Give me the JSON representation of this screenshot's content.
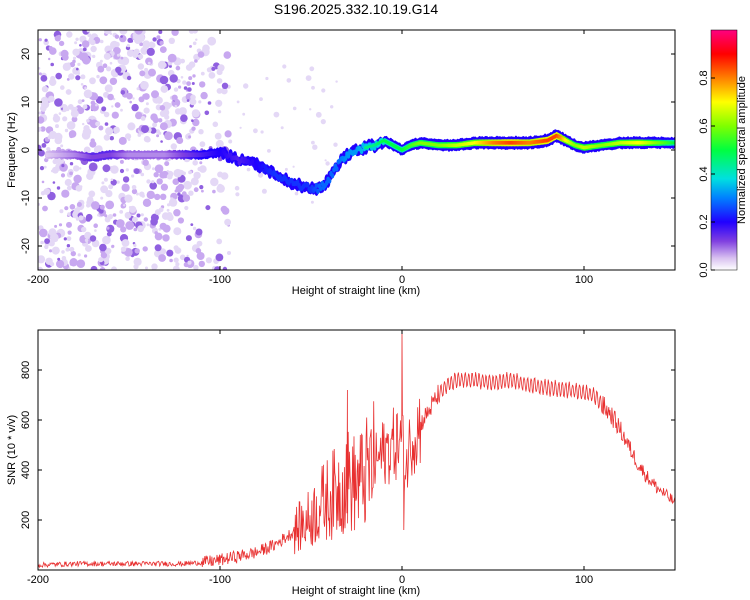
{
  "title": "S196.2025.332.10.19.G14",
  "colors": {
    "snr_line": "#e83030",
    "scatter": "#a070e0",
    "band": "#5000c0"
  },
  "chart_data": [
    {
      "type": "heatmap",
      "xlabel": "Height of straight line (km)",
      "ylabel": "Frequency (Hz)",
      "xlim": [
        -200,
        150
      ],
      "ylim": [
        -25,
        25
      ],
      "x_ticks": [
        "-200",
        "-100",
        "0",
        "100"
      ],
      "x_tick_values": [
        -200,
        -100,
        0,
        100
      ],
      "y_ticks": [
        "20",
        "10",
        "0",
        "-10",
        "-20"
      ],
      "y_tick_values": [
        20,
        10,
        0,
        -10,
        -20
      ],
      "colorbar": {
        "label": "Normalized spectral amplitude",
        "range": [
          0,
          1
        ],
        "ticks": [
          "0.0",
          "0.2",
          "0.4",
          "0.6",
          "0.8"
        ],
        "tick_values": [
          0.0,
          0.2,
          0.4,
          0.6,
          0.8
        ]
      },
      "ridge": {
        "x": [
          -195,
          -180,
          -170,
          -160,
          -150,
          -140,
          -130,
          -120,
          -110,
          -100,
          -90,
          -80,
          -70,
          -60,
          -50,
          -45,
          -40,
          -35,
          -30,
          -25,
          -20,
          -15,
          -10,
          -5,
          0,
          5,
          10,
          20,
          30,
          40,
          50,
          60,
          70,
          80,
          85,
          90,
          95,
          100,
          110,
          120,
          130,
          140,
          150
        ],
        "y": [
          -1,
          -1,
          -1.5,
          -1,
          -1,
          -1,
          -1,
          -1,
          -1,
          -0.5,
          -2,
          -3,
          -5,
          -7,
          -8,
          -8,
          -6,
          -3,
          -1,
          0,
          0.5,
          1,
          2,
          1,
          0,
          1,
          1.5,
          1,
          1,
          1.5,
          1.5,
          1.5,
          1.5,
          2,
          3,
          2,
          1,
          0.5,
          1,
          1.5,
          1.5,
          1.5,
          1.5
        ],
        "amplitude": [
          0.05,
          0.1,
          0.15,
          0.15,
          0.1,
          0.1,
          0.1,
          0.15,
          0.2,
          0.25,
          0.2,
          0.25,
          0.3,
          0.3,
          0.3,
          0.35,
          0.35,
          0.35,
          0.4,
          0.4,
          0.45,
          0.45,
          0.5,
          0.5,
          0.5,
          0.55,
          0.6,
          0.6,
          0.65,
          0.7,
          0.8,
          0.85,
          0.8,
          0.85,
          0.85,
          0.7,
          0.6,
          0.65,
          0.6,
          0.65,
          0.7,
          0.6,
          0.5
        ]
      }
    },
    {
      "type": "line",
      "xlabel": "Height of straight line (km)",
      "ylabel": "SNR (10 * v/v)",
      "xlim": [
        -200,
        150
      ],
      "ylim": [
        0,
        960
      ],
      "x_ticks": [
        "-200",
        "-100",
        "0",
        "100"
      ],
      "x_tick_values": [
        -200,
        -100,
        0,
        100
      ],
      "y_ticks": [
        "800",
        "600",
        "400",
        "200"
      ],
      "y_tick_values": [
        800,
        600,
        400,
        200
      ],
      "series": [
        {
          "name": "SNR",
          "x": [
            -200,
            -180,
            -160,
            -140,
            -120,
            -110,
            -100,
            -90,
            -80,
            -70,
            -60,
            -50,
            -45,
            -40,
            -35,
            -30,
            -25,
            -20,
            -15,
            -10,
            -5,
            0,
            2,
            5,
            10,
            15,
            20,
            25,
            30,
            40,
            50,
            60,
            70,
            80,
            90,
            100,
            105,
            110,
            115,
            120,
            125,
            130,
            135,
            140,
            145,
            150
          ],
          "y": [
            20,
            25,
            25,
            25,
            25,
            30,
            40,
            55,
            70,
            100,
            150,
            210,
            260,
            290,
            320,
            360,
            340,
            380,
            430,
            470,
            500,
            520,
            400,
            530,
            580,
            640,
            700,
            740,
            760,
            760,
            750,
            760,
            740,
            730,
            720,
            710,
            700,
            660,
            620,
            560,
            490,
            420,
            370,
            330,
            300,
            270
          ]
        }
      ],
      "spikes": [
        {
          "x": 0,
          "y": 960
        },
        {
          "x": -30,
          "y": 720
        },
        {
          "x": 1,
          "y": 160
        }
      ]
    }
  ]
}
